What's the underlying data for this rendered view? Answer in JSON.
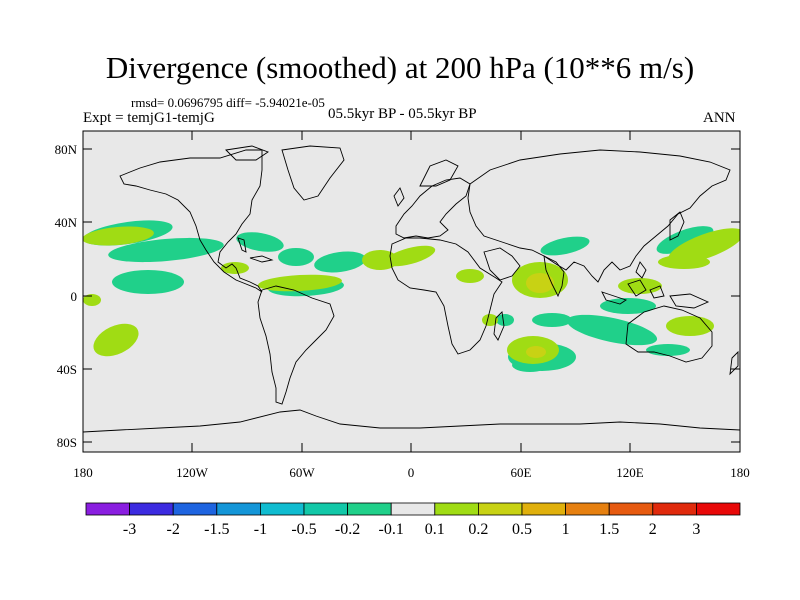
{
  "header": {
    "title": "Divergence (smoothed) at 200 hPa (10**6 m/s)",
    "stats": "rmsd= 0.0696795 diff= -5.94021e-05",
    "experiment": "Expt = temjG1-temjG",
    "period": "05.5kyr BP - 05.5kyr BP",
    "season": "ANN"
  },
  "axes": {
    "lat_labels": [
      "80N",
      "40N",
      "0",
      "40S",
      "80S"
    ],
    "lon_labels": [
      "180",
      "120W",
      "60W",
      "0",
      "60E",
      "120E",
      "180"
    ]
  },
  "colorbar": {
    "labels": [
      "-3",
      "-2",
      "-1.5",
      "-1",
      "-0.5",
      "-0.2",
      "-0.1",
      "0.1",
      "0.2",
      "0.5",
      "1",
      "1.5",
      "2",
      "3"
    ],
    "colors": [
      "#8a1ee0",
      "#3c2be0",
      "#1e64e0",
      "#1496d8",
      "#10bcd0",
      "#12c8a8",
      "#20d08a",
      "#e8e8e8",
      "#a0dc14",
      "#c8d214",
      "#e0b00c",
      "#e68010",
      "#e65a10",
      "#e02a0c",
      "#e80808"
    ]
  },
  "colors": {
    "map_background": "#e8e8e8",
    "positive_weak": "#a0dc14",
    "positive_mid": "#c8d214",
    "negative_weak": "#20d08a",
    "negative_mid": "#12c8a8"
  }
}
